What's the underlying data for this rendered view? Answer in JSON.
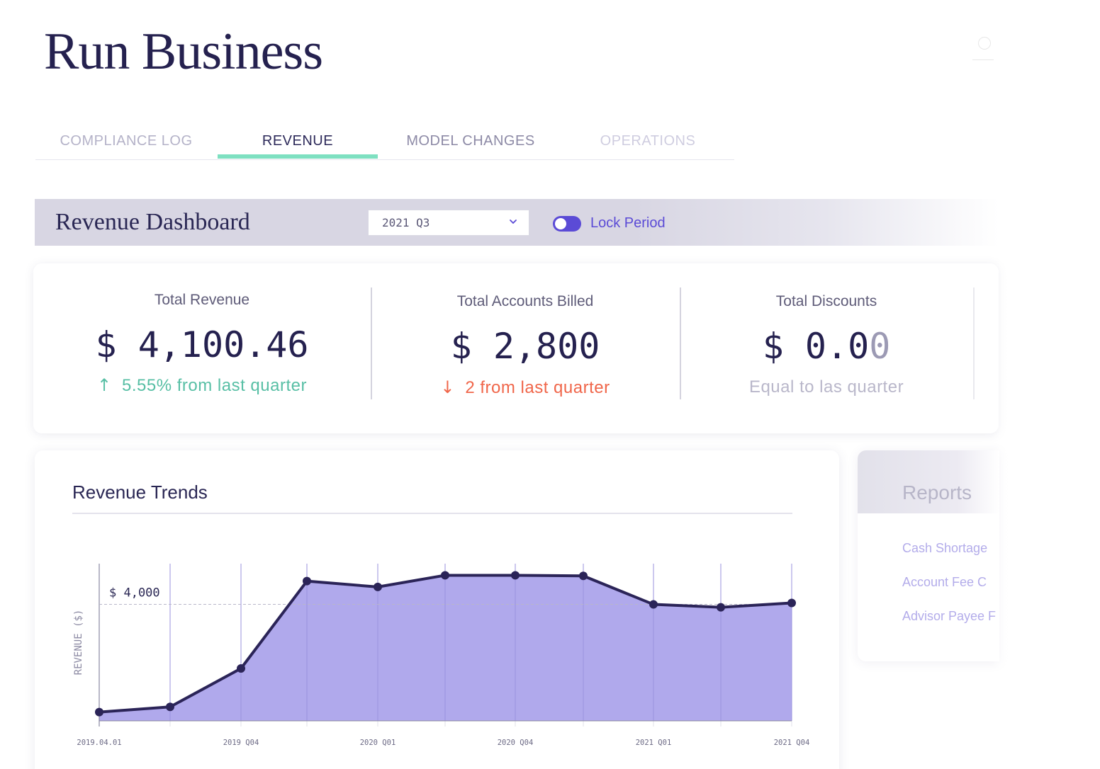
{
  "page": {
    "title": "Run Business"
  },
  "tabs": [
    {
      "label": "COMPLIANCE LOG",
      "active": false
    },
    {
      "label": "REVENUE",
      "active": true
    },
    {
      "label": "MODEL CHANGES",
      "active": false
    },
    {
      "label": "OPERATIONS",
      "active": false
    }
  ],
  "dashboard": {
    "title": "Revenue Dashboard",
    "period": "2021 Q3",
    "lock_label": "Lock Period",
    "lock_on": true
  },
  "kpis": [
    {
      "label": "Total Revenue",
      "value": "$ 4,100.46",
      "delta": "5.55% from last quarter",
      "direction": "up"
    },
    {
      "label": "Total Accounts Billed",
      "value": "$ 2,800",
      "delta": "2 from last quarter",
      "direction": "down"
    },
    {
      "label": "Total Discounts",
      "value_main": "$ 0.0",
      "value_fade": "0",
      "delta": "Equal to las quarter",
      "direction": "none"
    }
  ],
  "colors": {
    "accent": "#5b4bd6",
    "up": "#58bfa5",
    "down": "#f0664a",
    "area_fill": "#b0a9ec",
    "line": "#2b2458",
    "tab_underline": "#7ee0c1"
  },
  "chart_data": {
    "type": "area",
    "title": "Revenue Trends",
    "ylabel": "REVENUE ($)",
    "x": [
      "2019.04.01",
      "",
      "2019 Q04",
      "",
      "2020 Q01",
      "",
      "2020 Q04",
      "",
      "2021 Q01",
      "",
      "2021 Q04"
    ],
    "values": [
      300,
      480,
      1800,
      4800,
      4600,
      5000,
      5000,
      4980,
      4000,
      3900,
      4050
    ],
    "reference_line": {
      "value": 4000,
      "label": "$ 4,000"
    },
    "ylim": [
      0,
      5400
    ],
    "grid": "vertical"
  },
  "reports": {
    "title": "Reports",
    "items": [
      "Cash Shortage",
      "Account Fee C",
      "Advisor Payee F"
    ]
  }
}
